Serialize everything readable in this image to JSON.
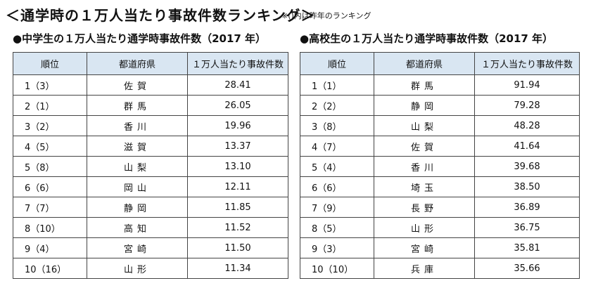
{
  "header": {
    "title": "＜通学時の１万人当たり事故件数ランキング＞",
    "note": "※()内は昨年のランキング"
  },
  "left": {
    "subtitle": "●中学生の１万人当たり通学時事故件数（2017 年）",
    "columns": [
      "順位",
      "都道府県",
      "１万人当たり事故件数"
    ],
    "rows": [
      {
        "rank": "1（3）",
        "pref": "佐賀",
        "value": "28.41"
      },
      {
        "rank": "2（1）",
        "pref": "群馬",
        "value": "26.05"
      },
      {
        "rank": "3（2）",
        "pref": "香川",
        "value": "19.96"
      },
      {
        "rank": "4（5）",
        "pref": "滋賀",
        "value": "13.37"
      },
      {
        "rank": "5（8）",
        "pref": "山梨",
        "value": "13.10"
      },
      {
        "rank": "6（6）",
        "pref": "岡山",
        "value": "12.11"
      },
      {
        "rank": "7（7）",
        "pref": "静岡",
        "value": "11.85"
      },
      {
        "rank": "8（10）",
        "pref": "高知",
        "value": "11.52"
      },
      {
        "rank": "9（4）",
        "pref": "宮崎",
        "value": "11.50"
      },
      {
        "rank": "10（16）",
        "pref": "山形",
        "value": "11.34"
      }
    ]
  },
  "right": {
    "subtitle": "●高校生の１万人当たり通学時事故件数（2017 年）",
    "columns": [
      "順位",
      "都道府県",
      "１万人当たり事故件数"
    ],
    "rows": [
      {
        "rank": "1（1）",
        "pref": "群馬",
        "value": "91.94"
      },
      {
        "rank": "2（2）",
        "pref": "静岡",
        "value": "79.28"
      },
      {
        "rank": "3（8）",
        "pref": "山梨",
        "value": "48.28"
      },
      {
        "rank": "4（7）",
        "pref": "佐賀",
        "value": "41.64"
      },
      {
        "rank": "5（4）",
        "pref": "香川",
        "value": "39.68"
      },
      {
        "rank": "6（6）",
        "pref": "埼玉",
        "value": "38.50"
      },
      {
        "rank": "7（9）",
        "pref": "長野",
        "value": "36.89"
      },
      {
        "rank": "8（5）",
        "pref": "山形",
        "value": "36.75"
      },
      {
        "rank": "9（3）",
        "pref": "宮崎",
        "value": "35.81"
      },
      {
        "rank": "10（10）",
        "pref": "兵庫",
        "value": "35.66"
      }
    ]
  },
  "colors": {
    "header_bg": "#d9e6f2",
    "border": "#444444"
  }
}
